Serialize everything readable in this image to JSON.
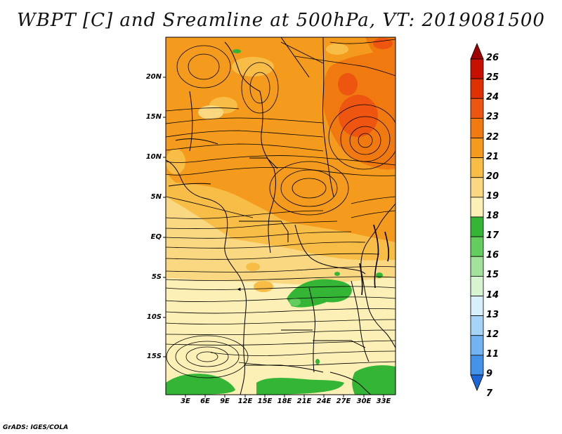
{
  "title": "WBPT [C] and Sreamline at 500hPa, VT: 2019081500",
  "footer": "GrADS: IGES/COLA",
  "map": {
    "lat_labels": [
      "20N",
      "15N",
      "10N",
      "5N",
      "EQ",
      "5S",
      "10S",
      "15S"
    ],
    "lon_labels": [
      "3E",
      "6E",
      "9E",
      "12E",
      "15E",
      "18E",
      "21E",
      "24E",
      "27E",
      "30E",
      "33E"
    ]
  },
  "colorbar": {
    "labels": [
      "26",
      "25",
      "24",
      "23",
      "22",
      "21",
      "20",
      "19",
      "18",
      "17",
      "16",
      "15",
      "14",
      "13",
      "12",
      "11",
      "9",
      "7"
    ],
    "colors": [
      "#a00000",
      "#c81000",
      "#e03000",
      "#ee5510",
      "#f07a10",
      "#f49a1c",
      "#f8bd46",
      "#fad882",
      "#fcf0b6",
      "#35b536",
      "#63cd5e",
      "#a2e29a",
      "#d6f4d0",
      "#d8f0fb",
      "#a6d4f8",
      "#72b4f2",
      "#4592ea",
      "#1c66d8"
    ]
  },
  "colors": {
    "warm_core": "#ee5510",
    "orange": "#f49a1c",
    "pale_yellow": "#fcf0b6",
    "green": "#35b536"
  }
}
